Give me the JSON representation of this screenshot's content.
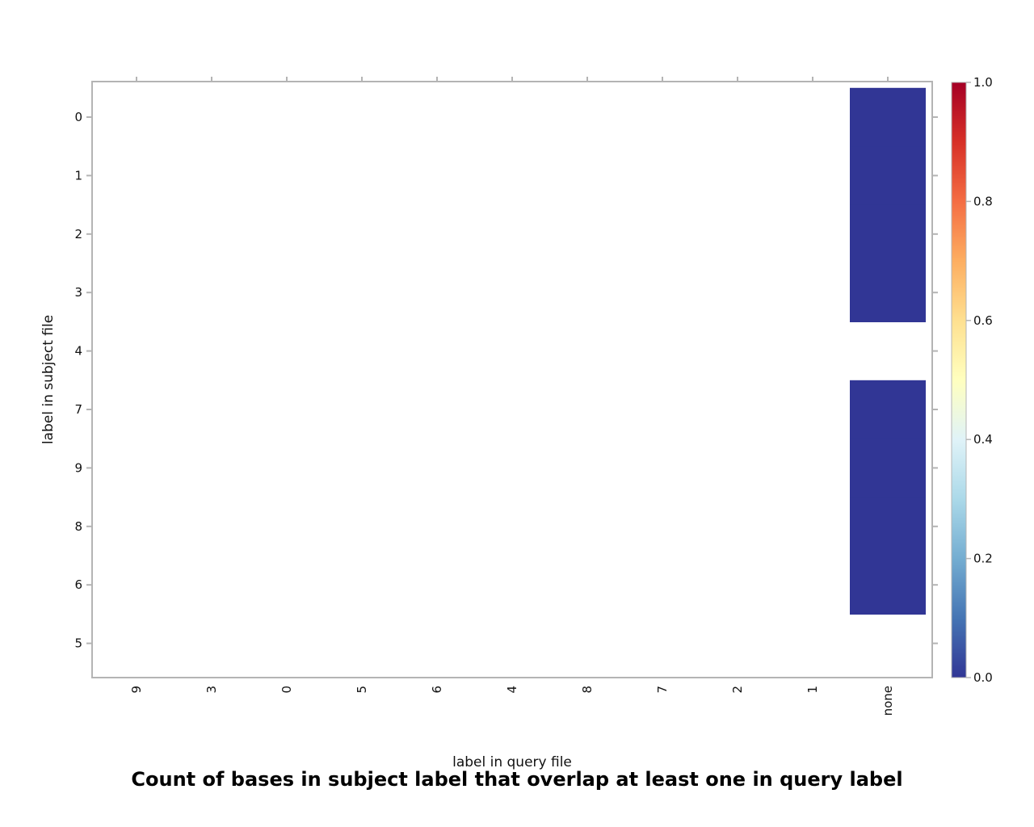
{
  "chart_data": {
    "type": "heatmap",
    "title": "Count of bases in subject label that overlap at least one in query label",
    "xlabel": "label in query file",
    "ylabel": "label in subject file",
    "x_categories": [
      "9",
      "3",
      "0",
      "5",
      "6",
      "4",
      "8",
      "7",
      "2",
      "1",
      "none"
    ],
    "y_categories": [
      "0",
      "1",
      "2",
      "3",
      "4",
      "7",
      "9",
      "8",
      "6",
      "5"
    ],
    "cells": [
      {
        "x": "none",
        "y": "0",
        "value": 0.0
      },
      {
        "x": "none",
        "y": "1",
        "value": 0.0
      },
      {
        "x": "none",
        "y": "2",
        "value": 0.0
      },
      {
        "x": "none",
        "y": "3",
        "value": 0.0
      },
      {
        "x": "none",
        "y": "7",
        "value": 0.0
      },
      {
        "x": "none",
        "y": "9",
        "value": 0.0
      },
      {
        "x": "none",
        "y": "8",
        "value": 0.0
      },
      {
        "x": "none",
        "y": "6",
        "value": 0.0
      }
    ],
    "colorbar": {
      "range": [
        0.0,
        1.0
      ],
      "tick_labels": [
        "0.0",
        "0.2",
        "0.4",
        "0.6",
        "0.8",
        "1.0"
      ],
      "colormap": "RdYlBu_r",
      "stops": [
        "#313695",
        "#4575b4",
        "#74add1",
        "#abd9e9",
        "#e0f3f8",
        "#ffffbf",
        "#fee090",
        "#fdae61",
        "#f46d43",
        "#d73027",
        "#a50026"
      ]
    },
    "grid": false
  }
}
